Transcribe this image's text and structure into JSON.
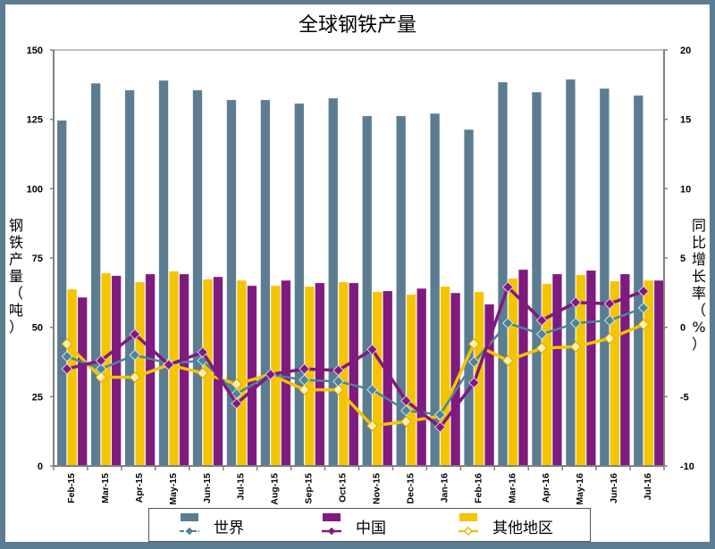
{
  "title": "全球钢铁产量",
  "y_left_label": [
    "钢",
    "铁",
    "产",
    "量",
    "（",
    "吨",
    "）"
  ],
  "y_right_label": [
    "同",
    "比",
    "增",
    "长",
    "率",
    "（",
    "%",
    "）"
  ],
  "legend": {
    "world": "世界",
    "china": "中国",
    "other": "其他地区"
  },
  "colors": {
    "world": "#5b7c91",
    "china": "#7f1a7f",
    "other": "#f5c400",
    "background": "#5b7c91"
  },
  "chart_data": {
    "type": "bar+line",
    "title": "全球钢铁产量",
    "xlabel": "",
    "ylabel": "钢铁产量（吨）",
    "y2label": "同比增长率（%）",
    "ylim": [
      0,
      150
    ],
    "y2lim": [
      -10,
      20
    ],
    "yticks": [
      0,
      25,
      50,
      75,
      100,
      125,
      150
    ],
    "y2ticks": [
      -10,
      -5,
      0,
      5,
      10,
      15,
      20
    ],
    "grid": false,
    "legend_position": "bottom",
    "categories": [
      "Feb-15",
      "Mar-15",
      "Apr-15",
      "May-15",
      "Jun-15",
      "Jul-15",
      "Aug-15",
      "Sep-15",
      "Oct-15",
      "Nov-15",
      "Dec-15",
      "Jan-16",
      "Feb-16",
      "Mar-16",
      "Apr-16",
      "May-16",
      "Jun-16",
      "Jul-16"
    ],
    "series": [
      {
        "name": "世界",
        "type": "bar",
        "axis": "left",
        "values": [
          124.6,
          138.0,
          135.5,
          139.0,
          135.5,
          132.0,
          132.0,
          130.7,
          132.6,
          126.2,
          126.2,
          127.1,
          121.3,
          138.4,
          134.8,
          139.4,
          136.1,
          133.6
        ]
      },
      {
        "name": "其他地区",
        "type": "bar",
        "axis": "left",
        "values": [
          63.7,
          69.5,
          66.3,
          70.2,
          67.3,
          66.9,
          65.0,
          64.7,
          66.3,
          62.8,
          61.8,
          64.7,
          62.8,
          67.6,
          65.7,
          68.9,
          66.6,
          66.9
        ]
      },
      {
        "name": "中国",
        "type": "bar",
        "axis": "left",
        "values": [
          60.8,
          68.6,
          69.2,
          69.2,
          68.2,
          65.0,
          66.9,
          66.0,
          66.0,
          63.1,
          64.0,
          62.4,
          58.3,
          70.8,
          69.2,
          70.5,
          69.2,
          66.9
        ]
      },
      {
        "name": "世界",
        "type": "line",
        "axis": "right",
        "values": [
          -2.1,
          -3.0,
          -2.0,
          -2.6,
          -2.4,
          -4.8,
          -3.4,
          -3.8,
          -3.9,
          -4.5,
          -6.0,
          -6.3,
          -2.5,
          0.3,
          -0.5,
          0.3,
          0.5,
          1.4
        ]
      },
      {
        "name": "中国",
        "type": "line",
        "axis": "right",
        "values": [
          -3.0,
          -2.4,
          -0.5,
          -2.7,
          -1.8,
          -5.5,
          -3.4,
          -3.0,
          -3.1,
          -1.6,
          -5.3,
          -7.2,
          -4.0,
          2.9,
          0.5,
          1.8,
          1.7,
          2.6
        ]
      },
      {
        "name": "其他地区",
        "type": "line",
        "axis": "right",
        "values": [
          -1.2,
          -3.6,
          -3.6,
          -2.7,
          -3.3,
          -4.1,
          -3.4,
          -4.5,
          -4.5,
          -7.1,
          -6.8,
          -6.4,
          -1.2,
          -2.4,
          -1.5,
          -1.4,
          -0.8,
          0.2
        ]
      }
    ]
  }
}
